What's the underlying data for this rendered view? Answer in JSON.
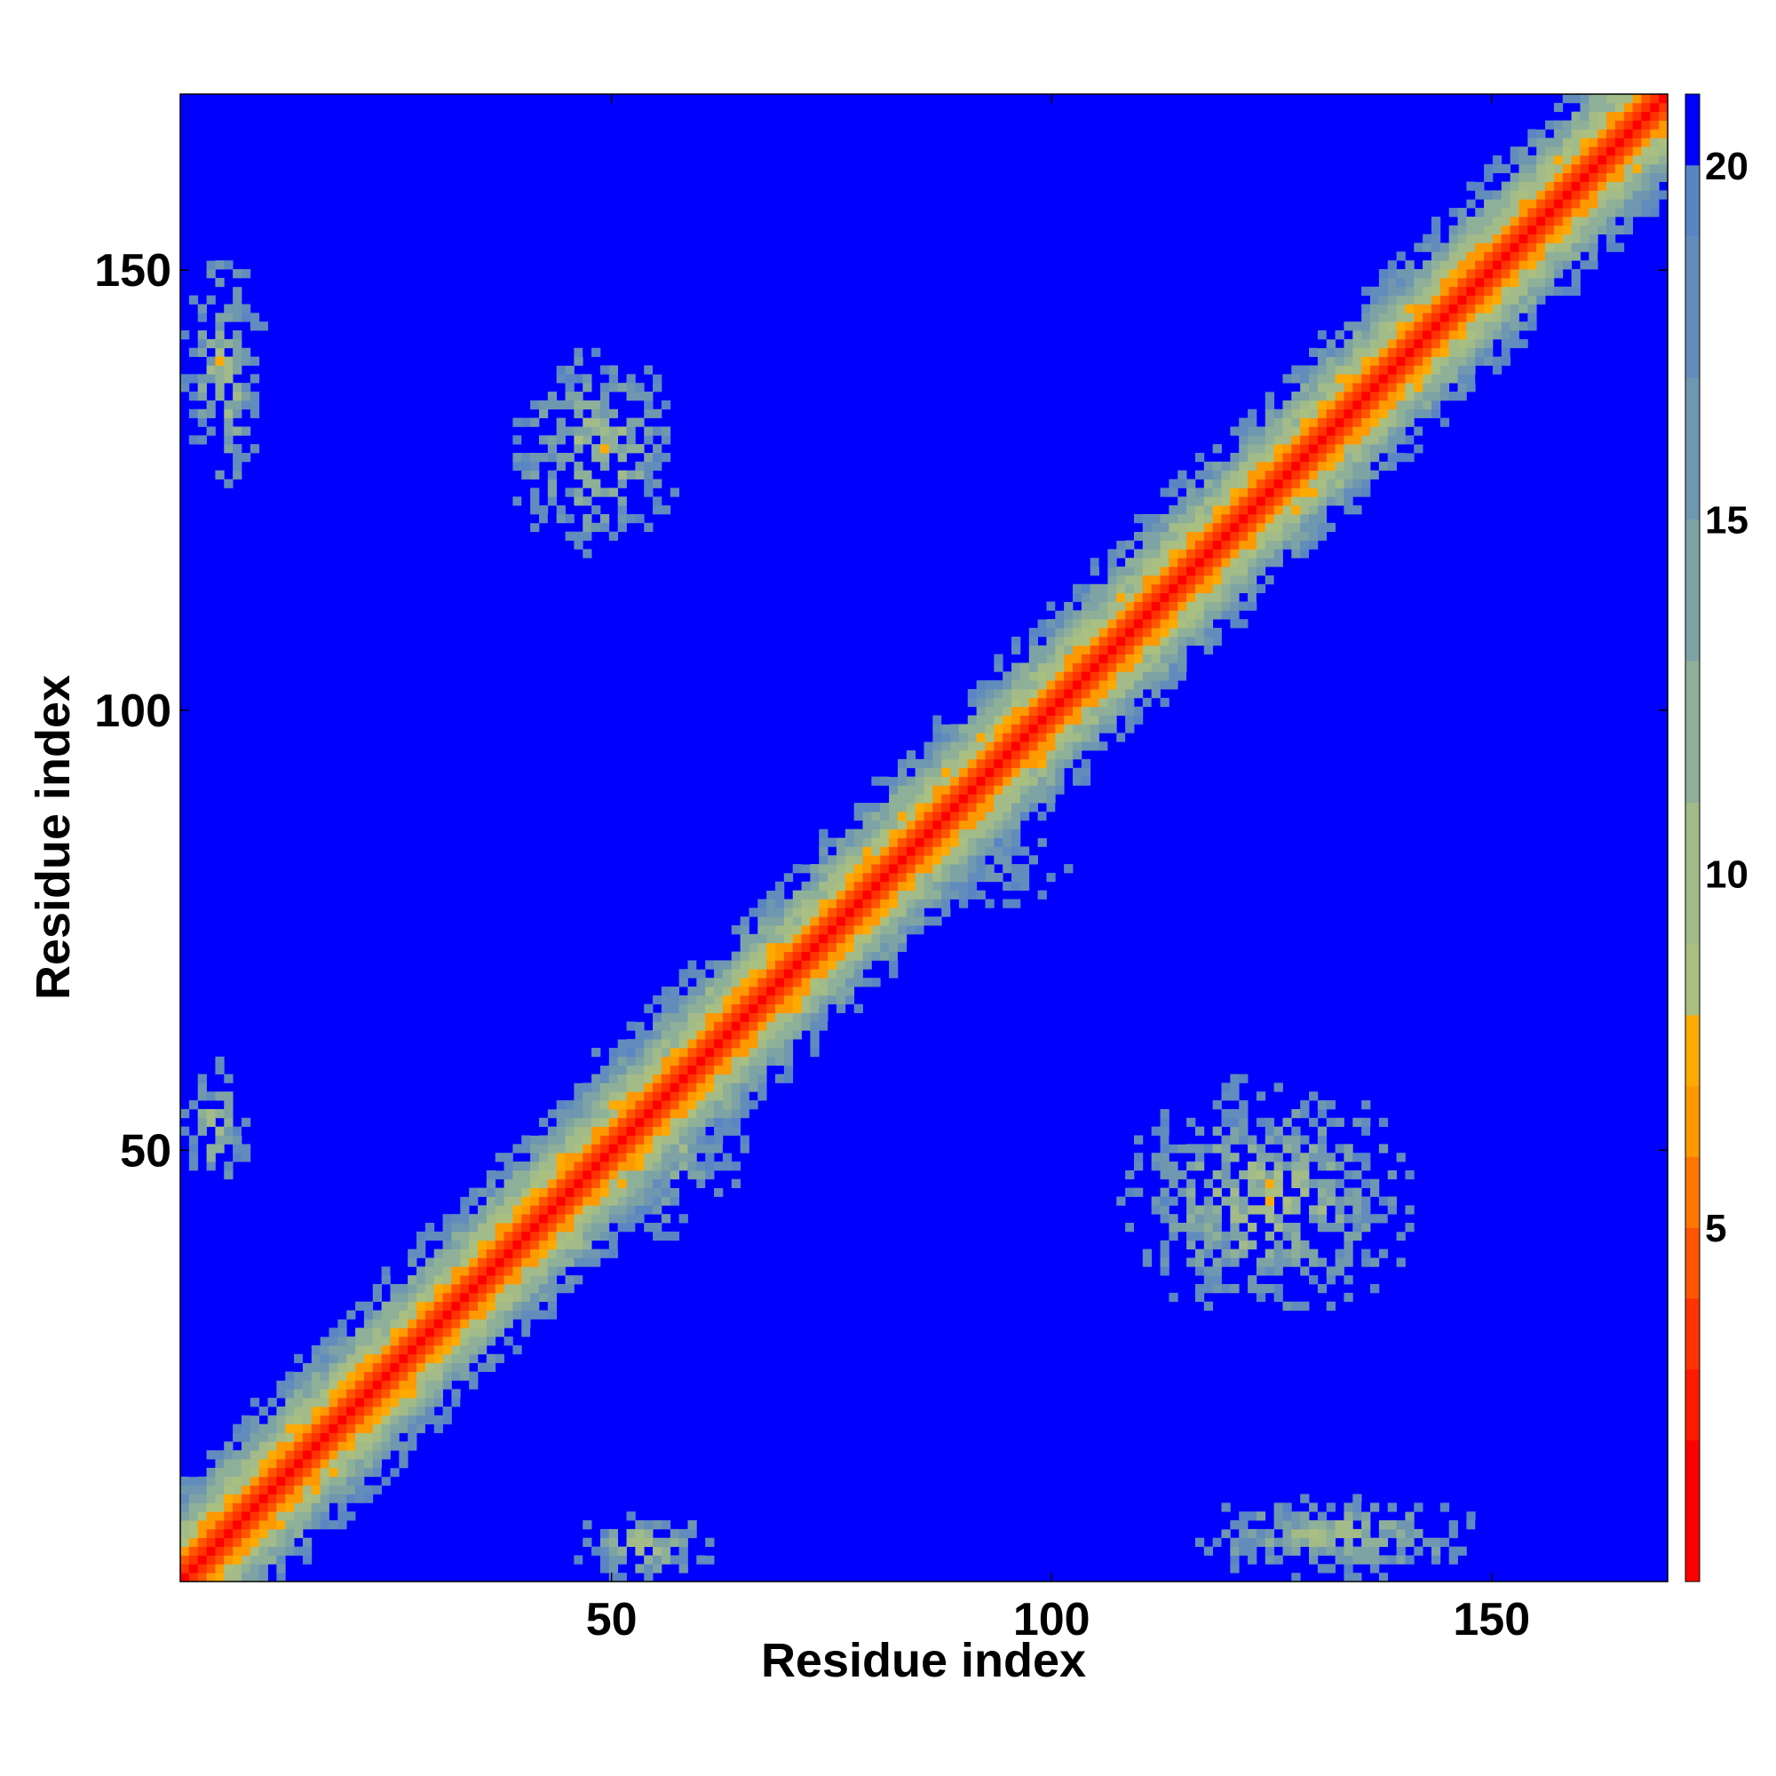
{
  "chart_data": {
    "type": "heatmap",
    "title": "",
    "xlabel": "Residue index",
    "ylabel": "Residue index",
    "n_residues": 170,
    "xlim": [
      1,
      170
    ],
    "ylim": [
      1,
      170
    ],
    "x_ticks": [
      50,
      100,
      150
    ],
    "x_tick_labels": [
      "50",
      "100",
      "150"
    ],
    "y_ticks": [
      50,
      100,
      150
    ],
    "y_tick_labels": [
      "50",
      "100",
      "150"
    ],
    "colorbar": {
      "ticks": [
        5,
        10,
        15,
        20
      ],
      "tick_labels": [
        "5",
        "10",
        "15",
        "20"
      ],
      "range": [
        0,
        21
      ],
      "levels": [
        {
          "max": 2,
          "color": "#ff0000"
        },
        {
          "max": 3,
          "color": "#ff1a00"
        },
        {
          "max": 4,
          "color": "#ff3300"
        },
        {
          "max": 5,
          "color": "#ff5500"
        },
        {
          "max": 6,
          "color": "#ff7700"
        },
        {
          "max": 7,
          "color": "#ff9900"
        },
        {
          "max": 8,
          "color": "#ffaa00"
        },
        {
          "max": 9,
          "color": "#aac080"
        },
        {
          "max": 11,
          "color": "#a3bb88"
        },
        {
          "max": 13,
          "color": "#8fb098"
        },
        {
          "max": 15,
          "color": "#7ea3a4"
        },
        {
          "max": 17,
          "color": "#6f97b0"
        },
        {
          "max": 19,
          "color": "#628cbb"
        },
        {
          "max": 20,
          "color": "#5a85c3"
        },
        {
          "max": 21,
          "color": "#0000ff"
        }
      ]
    },
    "background_value": 21,
    "diagonal_band": {
      "core_value": 1.5,
      "half_width_residues": 12
    },
    "off_diagonal_contact_regions": [
      {
        "x_range": [
          38,
          58
        ],
        "y_range": [
          118,
          142
        ],
        "min_value": 6
      },
      {
        "x_range": [
          108,
          142
        ],
        "y_range": [
          30,
          58
        ],
        "min_value": 6
      },
      {
        "x_range": [
          1,
          10
        ],
        "y_range": [
          125,
          153
        ],
        "min_value": 6
      },
      {
        "x_range": [
          1,
          8
        ],
        "y_range": [
          45,
          60
        ],
        "min_value": 6
      },
      {
        "x_range": [
          45,
          62
        ],
        "y_range": [
          1,
          8
        ],
        "min_value": 6
      },
      {
        "x_range": [
          115,
          150
        ],
        "y_range": [
          1,
          10
        ],
        "min_value": 6
      },
      {
        "x_range": [
          80,
          110
        ],
        "y_range": [
          70,
          95
        ],
        "min_value": 14
      },
      {
        "x_range": [
          45,
          65
        ],
        "y_range": [
          40,
          65
        ],
        "min_value": 6
      }
    ]
  }
}
